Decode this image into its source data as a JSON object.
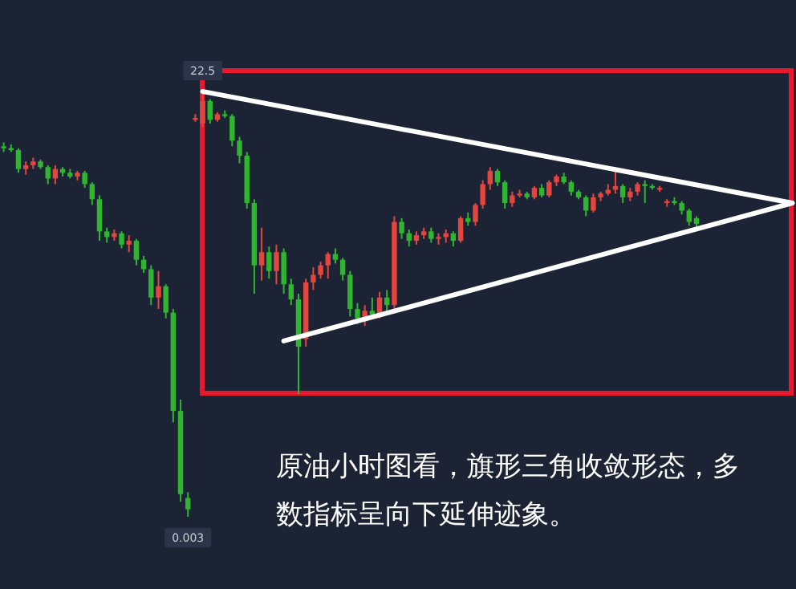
{
  "chart_data": {
    "type": "candlestick",
    "categories": [
      null,
      null,
      null,
      null,
      null,
      null,
      null,
      null,
      null,
      null,
      null,
      null,
      null,
      null,
      null,
      null,
      null,
      null,
      null,
      null,
      null,
      null,
      null,
      null,
      null,
      null,
      null,
      null,
      null,
      null,
      null,
      null,
      null,
      null,
      null,
      null,
      null,
      null,
      null,
      null,
      null,
      null,
      null,
      null,
      null,
      null,
      null,
      null,
      null,
      null,
      null,
      null,
      null,
      null,
      null,
      null,
      null,
      null,
      null,
      null,
      null,
      null,
      null,
      null,
      null,
      null,
      null,
      null,
      null,
      null,
      null,
      null,
      null,
      null,
      null,
      null,
      null,
      null,
      null,
      null,
      null,
      null,
      null,
      null,
      null,
      null,
      null,
      null,
      null,
      null,
      null,
      null,
      null,
      null,
      null,
      null,
      null,
      null,
      null,
      null,
      null,
      null,
      null,
      null,
      null,
      null,
      null,
      null
    ],
    "ohlc": [
      [
        19.6,
        19.8,
        19.3,
        19.5
      ],
      [
        19.5,
        19.7,
        19.3,
        19.4
      ],
      [
        19.4,
        19.5,
        18.2,
        18.4
      ],
      [
        18.4,
        18.8,
        18.1,
        18.6
      ],
      [
        18.6,
        19.0,
        18.4,
        18.8
      ],
      [
        18.8,
        18.9,
        18.4,
        18.5
      ],
      [
        18.5,
        18.6,
        17.6,
        17.9
      ],
      [
        17.9,
        18.6,
        17.6,
        18.4
      ],
      [
        18.4,
        18.5,
        18.0,
        18.2
      ],
      [
        18.2,
        18.4,
        17.9,
        18.0
      ],
      [
        18.0,
        18.3,
        17.8,
        18.2
      ],
      [
        18.2,
        18.3,
        17.4,
        17.6
      ],
      [
        17.6,
        17.7,
        16.5,
        16.8
      ],
      [
        16.8,
        17.0,
        14.6,
        15.1
      ],
      [
        15.1,
        15.3,
        14.5,
        14.8
      ],
      [
        14.8,
        15.2,
        14.6,
        15.0
      ],
      [
        15.0,
        15.1,
        14.2,
        14.4
      ],
      [
        14.4,
        14.9,
        14.0,
        14.6
      ],
      [
        14.6,
        14.7,
        13.3,
        13.6
      ],
      [
        13.6,
        13.8,
        12.9,
        13.1
      ],
      [
        13.1,
        13.3,
        11.2,
        11.6
      ],
      [
        11.6,
        13.0,
        11.0,
        12.2
      ],
      [
        12.2,
        12.3,
        10.5,
        10.8
      ],
      [
        10.8,
        11.0,
        5.0,
        5.6
      ],
      [
        5.6,
        6.2,
        0.8,
        1.2
      ],
      [
        1.0,
        1.3,
        0.003,
        0.4
      ],
      [
        21.0,
        21.3,
        20.9,
        21.1
      ],
      [
        20.8,
        22.5,
        20.6,
        22.0
      ],
      [
        22.0,
        22.1,
        20.8,
        21.0
      ],
      [
        21.0,
        21.4,
        20.9,
        21.3
      ],
      [
        21.3,
        21.5,
        21.1,
        21.2
      ],
      [
        21.2,
        21.3,
        19.6,
        19.9
      ],
      [
        19.9,
        20.1,
        18.7,
        19.1
      ],
      [
        19.1,
        19.3,
        16.3,
        16.6
      ],
      [
        16.6,
        16.8,
        11.8,
        13.3
      ],
      [
        13.3,
        15.3,
        12.5,
        14.0
      ],
      [
        14.0,
        14.3,
        12.6,
        13.0
      ],
      [
        13.0,
        14.4,
        12.3,
        14.0
      ],
      [
        14.0,
        14.2,
        11.8,
        12.3
      ],
      [
        12.3,
        12.6,
        11.2,
        11.5
      ],
      [
        11.5,
        11.8,
        6.5,
        9.0
      ],
      [
        9.4,
        12.6,
        9.0,
        12.4
      ],
      [
        12.4,
        13.2,
        12.0,
        12.8
      ],
      [
        12.8,
        13.5,
        12.6,
        13.3
      ],
      [
        13.3,
        14.0,
        12.6,
        13.9
      ],
      [
        13.9,
        14.2,
        13.4,
        13.6
      ],
      [
        13.6,
        13.7,
        12.5,
        12.8
      ],
      [
        12.8,
        13.0,
        10.6,
        11.0
      ],
      [
        11.0,
        11.3,
        10.2,
        10.5
      ],
      [
        10.5,
        11.2,
        10.1,
        10.9
      ],
      [
        10.9,
        11.6,
        10.5,
        10.7
      ],
      [
        10.7,
        11.9,
        10.5,
        11.6
      ],
      [
        11.6,
        12.0,
        10.8,
        11.2
      ],
      [
        11.2,
        15.9,
        11.0,
        15.6
      ],
      [
        15.6,
        15.8,
        14.7,
        15.0
      ],
      [
        15.0,
        15.2,
        14.3,
        14.6
      ],
      [
        14.6,
        15.1,
        14.4,
        14.9
      ],
      [
        14.9,
        15.3,
        14.7,
        15.1
      ],
      [
        15.1,
        15.3,
        14.5,
        14.7
      ],
      [
        14.7,
        15.0,
        14.4,
        14.8
      ],
      [
        14.8,
        15.2,
        14.5,
        15.0
      ],
      [
        15.0,
        15.1,
        14.3,
        14.6
      ],
      [
        14.6,
        15.9,
        14.5,
        15.8
      ],
      [
        15.8,
        16.1,
        15.4,
        15.6
      ],
      [
        15.6,
        16.6,
        15.4,
        16.5
      ],
      [
        16.5,
        17.8,
        16.3,
        17.6
      ],
      [
        17.6,
        18.5,
        17.3,
        18.3
      ],
      [
        18.3,
        18.4,
        17.5,
        17.7
      ],
      [
        17.7,
        17.8,
        16.3,
        16.6
      ],
      [
        16.6,
        17.2,
        16.4,
        17.0
      ],
      [
        17.0,
        17.3,
        16.9,
        17.1
      ],
      [
        17.1,
        17.2,
        16.8,
        16.9
      ],
      [
        16.9,
        17.5,
        16.8,
        17.4
      ],
      [
        17.4,
        17.6,
        16.9,
        17.0
      ],
      [
        17.0,
        17.8,
        16.9,
        17.7
      ],
      [
        17.7,
        18.1,
        17.5,
        18.0
      ],
      [
        18.0,
        18.2,
        17.6,
        17.7
      ],
      [
        17.7,
        17.8,
        17.0,
        17.2
      ],
      [
        17.2,
        17.3,
        16.8,
        16.9
      ],
      [
        16.9,
        17.0,
        15.9,
        16.2
      ],
      [
        16.2,
        17.1,
        16.1,
        16.9
      ],
      [
        16.9,
        17.2,
        16.7,
        17.1
      ],
      [
        17.1,
        17.6,
        17.0,
        17.3
      ],
      [
        17.3,
        18.5,
        17.1,
        17.5
      ],
      [
        17.5,
        17.6,
        16.6,
        16.9
      ],
      [
        16.9,
        17.4,
        16.7,
        17.2
      ],
      [
        17.2,
        17.7,
        17.0,
        17.6
      ],
      [
        17.6,
        17.8,
        16.6,
        17.5
      ],
      [
        17.5,
        17.6,
        17.3,
        17.4
      ],
      [
        17.3,
        17.5,
        17.2,
        17.4
      ],
      [
        16.6,
        16.8,
        16.4,
        16.7
      ],
      [
        16.7,
        16.9,
        16.5,
        16.6
      ],
      [
        16.6,
        16.7,
        16.0,
        16.2
      ],
      [
        16.2,
        16.3,
        15.4,
        15.6
      ],
      [
        15.8,
        15.9,
        15.3,
        15.5
      ],
      null,
      null,
      null,
      null,
      null,
      null,
      null,
      null,
      null,
      null,
      null,
      null,
      null
    ],
    "colors": [
      "#2fb52f",
      "#2fb52f",
      "#2fb52f",
      "#e2463f",
      "#e2463f",
      "#2fb52f",
      "#2fb52f",
      "#e2463f",
      "#2fb52f",
      "#2fb52f",
      "#e2463f",
      "#2fb52f",
      "#2fb52f",
      "#2fb52f",
      "#2fb52f",
      "#e2463f",
      "#2fb52f",
      "#e2463f",
      "#2fb52f",
      "#2fb52f",
      "#2fb52f",
      "#e2463f",
      "#2fb52f",
      "#2fb52f",
      "#2fb52f",
      "#2fb52f",
      "#e2463f",
      "#e2463f",
      "#2fb52f",
      "#e2463f",
      "#2fb52f",
      "#2fb52f",
      "#2fb52f",
      "#2fb52f",
      "#2fb52f",
      "#e2463f",
      "#2fb52f",
      "#e2463f",
      "#2fb52f",
      "#2fb52f",
      "#2fb52f",
      "#e2463f",
      "#e2463f",
      "#e2463f",
      "#e2463f",
      "#2fb52f",
      "#2fb52f",
      "#2fb52f",
      "#2fb52f",
      "#e2463f",
      "#2fb52f",
      "#e2463f",
      "#2fb52f",
      "#e2463f",
      "#2fb52f",
      "#2fb52f",
      "#e2463f",
      "#e2463f",
      "#2fb52f",
      "#e2463f",
      "#e2463f",
      "#2fb52f",
      "#e2463f",
      "#2fb52f",
      "#e2463f",
      "#e2463f",
      "#e2463f",
      "#2fb52f",
      "#2fb52f",
      "#e2463f",
      "#e2463f",
      "#2fb52f",
      "#e2463f",
      "#2fb52f",
      "#e2463f",
      "#e2463f",
      "#2fb52f",
      "#2fb52f",
      "#2fb52f",
      "#2fb52f",
      "#e2463f",
      "#e2463f",
      "#e2463f",
      "#e2463f",
      "#2fb52f",
      "#e2463f",
      "#e2463f",
      "#2fb52f",
      "#2fb52f",
      "#e2463f",
      "#e2463f",
      "#2fb52f",
      "#2fb52f",
      "#2fb52f",
      "#2fb52f",
      null,
      null,
      null,
      null,
      null,
      null,
      null,
      null,
      null,
      null,
      null,
      null,
      null
    ],
    "series": [
      {
        "type": "line",
        "color": "#ffffff",
        "values": [
          null,
          null,
          null,
          null,
          null,
          null,
          null,
          null,
          null,
          null,
          null,
          null,
          null,
          null,
          null,
          null,
          null,
          null,
          null,
          null,
          null,
          null,
          null,
          null,
          null,
          null,
          null,
          22.5,
          null,
          null,
          null,
          null,
          null,
          null,
          null,
          null,
          null,
          null,
          null,
          null,
          null,
          null,
          null,
          null,
          null,
          null,
          null,
          null,
          null,
          null,
          null,
          null,
          null,
          null,
          null,
          null,
          null,
          null,
          null,
          null,
          null,
          null,
          null,
          null,
          null,
          null,
          null,
          null,
          null,
          null,
          null,
          null,
          null,
          null,
          null,
          null,
          null,
          null,
          null,
          null,
          null,
          null,
          null,
          null,
          null,
          null,
          null,
          null,
          null,
          null,
          null,
          null,
          null,
          null,
          null,
          null,
          null,
          null,
          null,
          null,
          null,
          null,
          null,
          null,
          null,
          null,
          null,
          16.6
        ]
      },
      {
        "type": "line",
        "color": "#ffffff",
        "values": [
          null,
          null,
          null,
          null,
          null,
          null,
          null,
          null,
          null,
          null,
          null,
          null,
          null,
          null,
          null,
          null,
          null,
          null,
          null,
          null,
          null,
          null,
          null,
          null,
          null,
          null,
          null,
          null,
          null,
          null,
          null,
          null,
          null,
          null,
          null,
          null,
          null,
          null,
          9.3,
          null,
          null,
          null,
          null,
          null,
          null,
          null,
          null,
          null,
          null,
          null,
          null,
          null,
          null,
          null,
          null,
          null,
          null,
          null,
          null,
          null,
          null,
          null,
          null,
          null,
          null,
          null,
          null,
          null,
          null,
          null,
          null,
          null,
          null,
          null,
          null,
          null,
          null,
          null,
          null,
          null,
          null,
          null,
          null,
          null,
          null,
          null,
          null,
          null,
          null,
          null,
          null,
          null,
          null,
          null,
          null,
          null,
          null,
          null,
          null,
          null,
          null,
          null,
          null,
          null,
          null,
          null,
          null,
          16.6
        ]
      }
    ],
    "annotations": [
      {
        "text": "22.5",
        "y": 22.5
      },
      {
        "text": "0.003",
        "y": 0.003
      },
      "原油小时图看，旗形三角收敛形态，多数指标呈向下延伸迹象。"
    ]
  }
}
